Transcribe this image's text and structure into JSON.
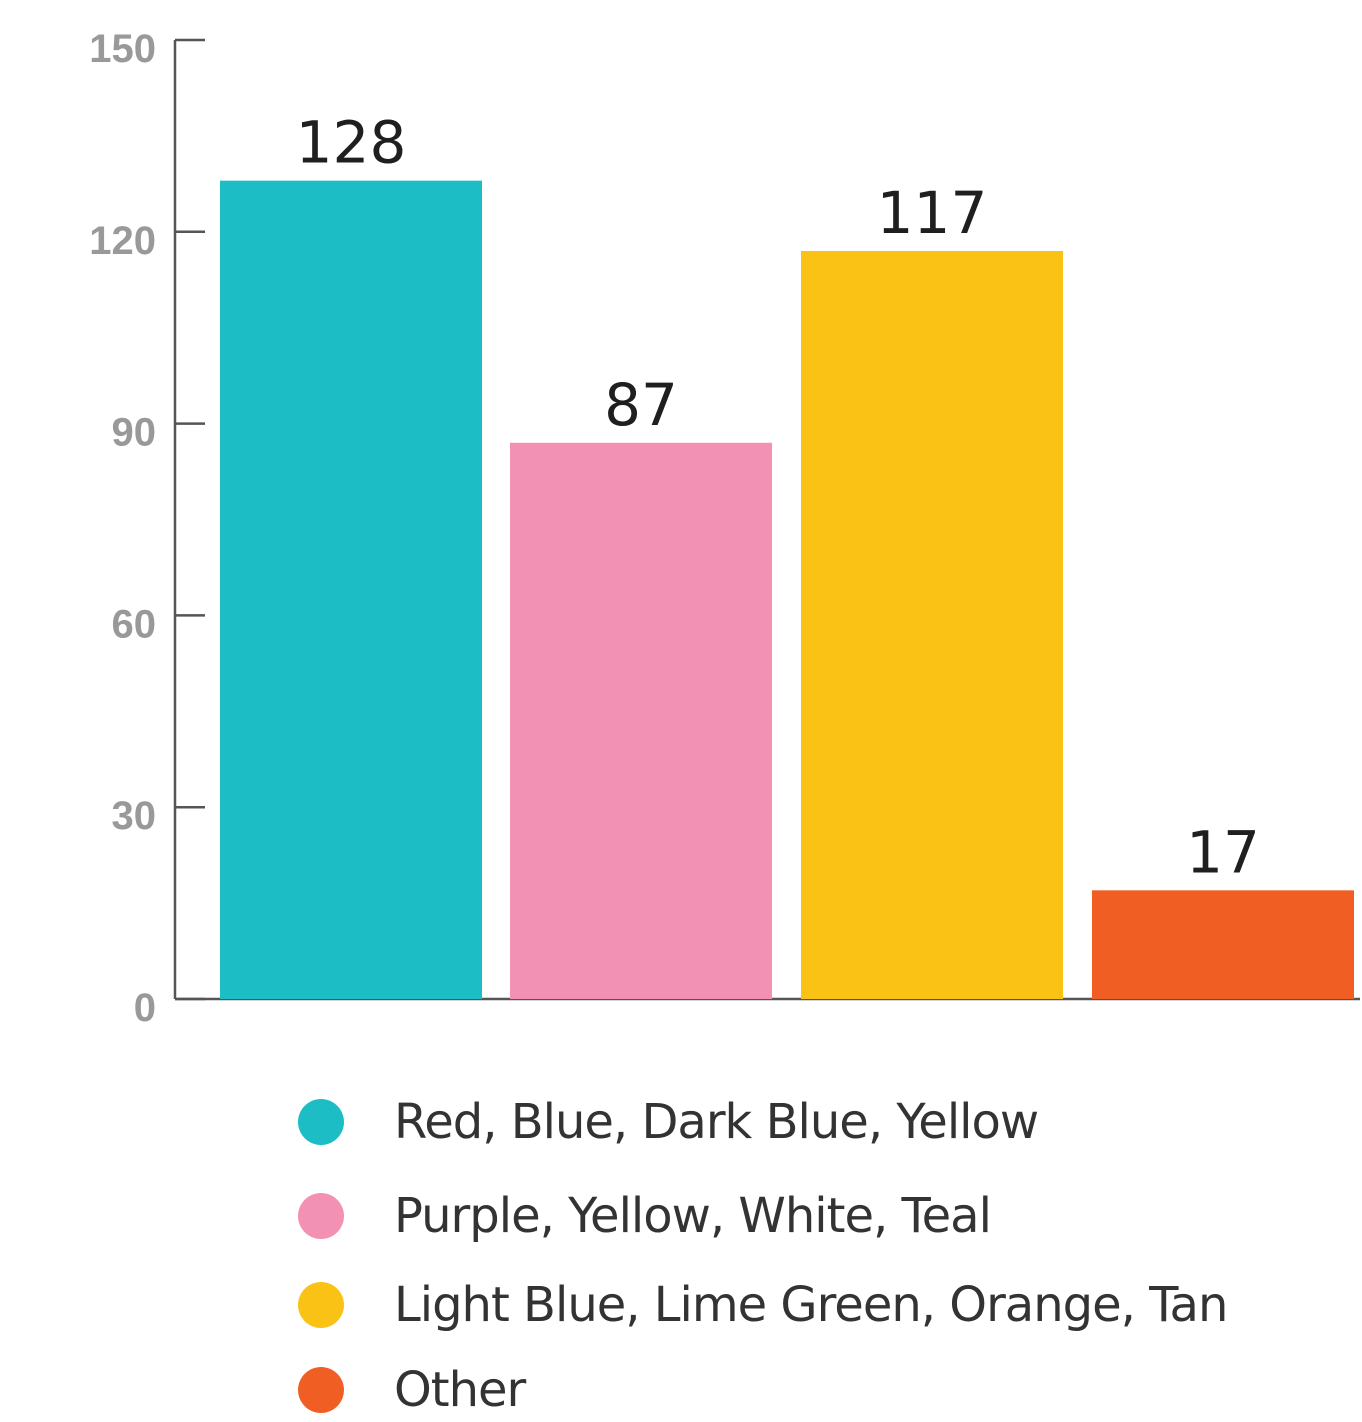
{
  "chart_data": {
    "type": "bar",
    "categories": [
      "Red, Blue, Dark Blue, Yellow",
      "Purple, Yellow, White, Teal",
      "Light Blue, Lime Green, Orange, Tan",
      "Other"
    ],
    "values": [
      128,
      87,
      117,
      17
    ],
    "value_labels": [
      "128",
      "87",
      "117",
      "17"
    ],
    "colors": [
      "#1dbdc6",
      "#f291b3",
      "#fbc216",
      "#f15e24"
    ],
    "ylim": [
      0,
      150
    ],
    "yticks": [
      0,
      30,
      60,
      90,
      120,
      150
    ],
    "ytick_labels": [
      "0",
      "30",
      "60",
      "90",
      "120",
      "150"
    ],
    "grid": false,
    "legend_position": "bottom"
  }
}
